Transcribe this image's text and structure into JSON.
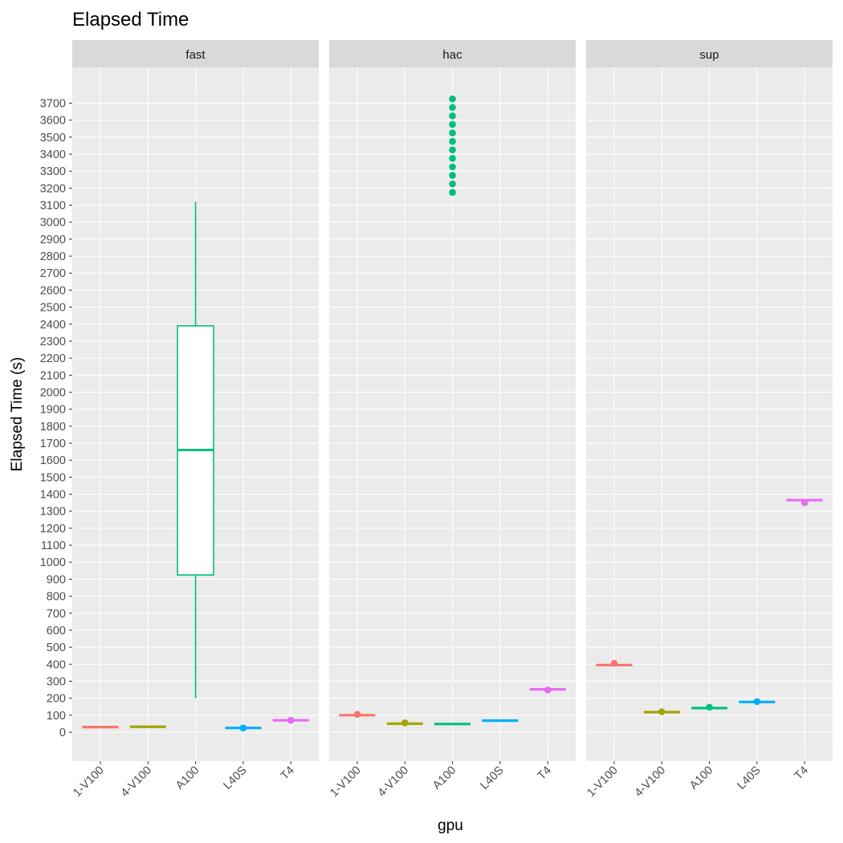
{
  "chart_data": {
    "type": "boxplot",
    "title": "Elapsed Time",
    "xlabel": "gpu",
    "ylabel": "Elapsed Time (s)",
    "ylim": [
      -170,
      3910
    ],
    "y_ticks": [
      0,
      100,
      200,
      300,
      400,
      500,
      600,
      700,
      800,
      900,
      1000,
      1100,
      1200,
      1300,
      1400,
      1500,
      1600,
      1700,
      1800,
      1900,
      2000,
      2100,
      2200,
      2300,
      2400,
      2500,
      2600,
      2700,
      2800,
      2900,
      3000,
      3100,
      3200,
      3300,
      3400,
      3500,
      3600,
      3700
    ],
    "y_tick_labels": [
      "0",
      "100",
      "200",
      "300",
      "400",
      "500",
      "600",
      "700",
      "800",
      "900",
      "1000",
      "1100",
      "1200",
      "1300",
      "1400",
      "1500",
      "1600",
      "1700",
      "1800",
      "1900",
      "2000",
      "2100",
      "2200",
      "2300",
      "2400",
      "2500",
      "2600",
      "2700",
      "2800",
      "2900",
      "3000",
      "3100",
      "3200",
      "3300",
      "3400",
      "3500",
      "3600",
      "3700"
    ],
    "categories": [
      "1-V100",
      "4-V100",
      "A100",
      "L40S",
      "T4"
    ],
    "grid": true,
    "legend": "none",
    "colors": {
      "1-V100": "#F8766D",
      "4-V100": "#A3A500",
      "A100": "#00BF7D",
      "L40S": "#00B0F6",
      "T4": "#E76BF3"
    },
    "facets": [
      {
        "name": "fast",
        "boxes": [
          {
            "category": "1-V100",
            "low": 30,
            "q1": 30,
            "median": 30,
            "q3": 30,
            "high": 30,
            "outliers": [],
            "points": []
          },
          {
            "category": "4-V100",
            "low": 32,
            "q1": 32,
            "median": 32,
            "q3": 32,
            "high": 32,
            "outliers": [],
            "points": []
          },
          {
            "category": "A100",
            "low": 200,
            "q1": 925,
            "median": 1660,
            "q3": 2390,
            "high": 3120,
            "outliers": [],
            "points": []
          },
          {
            "category": "L40S",
            "low": 25,
            "q1": 25,
            "median": 25,
            "q3": 25,
            "high": 25,
            "outliers": [],
            "points": [
              25
            ]
          },
          {
            "category": "T4",
            "low": 70,
            "q1": 70,
            "median": 70,
            "q3": 70,
            "high": 70,
            "outliers": [],
            "points": [
              70
            ]
          }
        ]
      },
      {
        "name": "hac",
        "boxes": [
          {
            "category": "1-V100",
            "low": 100,
            "q1": 100,
            "median": 100,
            "q3": 100,
            "high": 100,
            "outliers": [],
            "points": [
              105
            ]
          },
          {
            "category": "4-V100",
            "low": 50,
            "q1": 50,
            "median": 50,
            "q3": 50,
            "high": 50,
            "outliers": [],
            "points": [
              55
            ]
          },
          {
            "category": "A100",
            "low": 48,
            "q1": 48,
            "median": 48,
            "q3": 48,
            "high": 48,
            "outliers": [
              3175,
              3225,
              3275,
              3325,
              3375,
              3425,
              3475,
              3525,
              3575,
              3625,
              3675,
              3725
            ],
            "points": []
          },
          {
            "category": "L40S",
            "low": 68,
            "q1": 68,
            "median": 68,
            "q3": 68,
            "high": 68,
            "outliers": [],
            "points": []
          },
          {
            "category": "T4",
            "low": 252,
            "q1": 252,
            "median": 252,
            "q3": 252,
            "high": 252,
            "outliers": [],
            "points": [
              248
            ]
          }
        ]
      },
      {
        "name": "sup",
        "boxes": [
          {
            "category": "1-V100",
            "low": 395,
            "q1": 395,
            "median": 395,
            "q3": 395,
            "high": 395,
            "outliers": [],
            "points": [
              405
            ]
          },
          {
            "category": "4-V100",
            "low": 118,
            "q1": 118,
            "median": 118,
            "q3": 118,
            "high": 118,
            "outliers": [],
            "points": [
              120
            ]
          },
          {
            "category": "A100",
            "low": 142,
            "q1": 142,
            "median": 142,
            "q3": 142,
            "high": 142,
            "outliers": [],
            "points": [
              147
            ]
          },
          {
            "category": "L40S",
            "low": 178,
            "q1": 178,
            "median": 178,
            "q3": 178,
            "high": 178,
            "outliers": [],
            "points": [
              180
            ]
          },
          {
            "category": "T4",
            "low": 1365,
            "q1": 1365,
            "median": 1365,
            "q3": 1365,
            "high": 1365,
            "outliers": [],
            "points": [
              1350
            ]
          }
        ]
      }
    ]
  }
}
